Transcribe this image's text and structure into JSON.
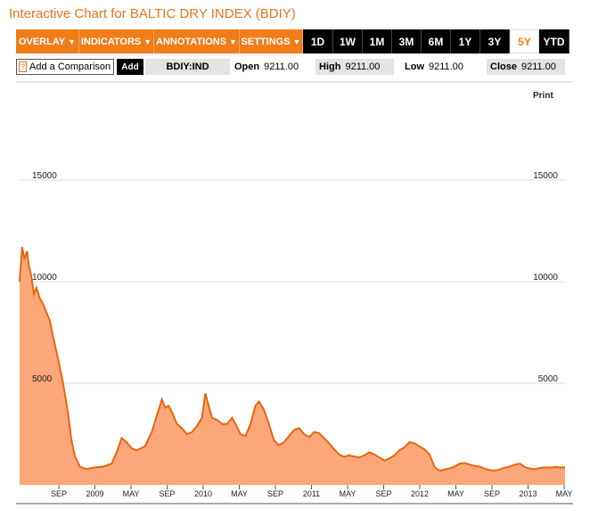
{
  "page_title": "Interactive Chart for BALTIC DRY INDEX (BDIY)",
  "toolbar": {
    "menus": [
      "OVERLAY",
      "INDICATORS",
      "ANNOTATIONS",
      "SETTINGS"
    ],
    "ranges": [
      "1D",
      "1W",
      "1M",
      "3M",
      "6M",
      "1Y",
      "3Y",
      "5Y",
      "YTD"
    ],
    "active_range": "5Y"
  },
  "comparison": {
    "help_icon_label": "?",
    "label": "Add a Comparison",
    "add_button": "Add"
  },
  "ticker": "BDIY:IND",
  "quote": {
    "open_label": "Open",
    "open_value": "9211.00",
    "high_label": "High",
    "high_value": "9211.00",
    "low_label": "Low",
    "low_value": "9211.00",
    "close_label": "Close",
    "close_value": "9211.00"
  },
  "print_label": "Print",
  "colors": {
    "accent": "#f07d19",
    "area_fill": "#fba77a",
    "line": "#e8650f"
  },
  "chart_data": {
    "type": "area",
    "title": "",
    "ylim": [
      0,
      16000
    ],
    "y_ticks": [
      "5000",
      "10000",
      "15000"
    ],
    "x_ticks": [
      "SEP",
      "2009",
      "MAY",
      "SEP",
      "2010",
      "MAY",
      "SEP",
      "2011",
      "MAY",
      "SEP",
      "2012",
      "MAY",
      "SEP",
      "2013",
      "MAY"
    ],
    "series": [
      {
        "name": "BDIY",
        "points": [
          [
            0,
            10000
          ],
          [
            0.15,
            11700
          ],
          [
            0.3,
            11100
          ],
          [
            0.45,
            11500
          ],
          [
            0.55,
            10800
          ],
          [
            0.7,
            10300
          ],
          [
            0.85,
            9400
          ],
          [
            1,
            9700
          ],
          [
            1.2,
            9200
          ],
          [
            1.4,
            8900
          ],
          [
            1.6,
            8500
          ],
          [
            1.8,
            8100
          ],
          [
            2.0,
            7300
          ],
          [
            2.3,
            6200
          ],
          [
            2.6,
            5000
          ],
          [
            2.9,
            3500
          ],
          [
            3.1,
            2200
          ],
          [
            3.3,
            1400
          ],
          [
            3.6,
            900
          ],
          [
            4,
            780
          ],
          [
            4.5,
            860
          ],
          [
            5,
            900
          ],
          [
            5.5,
            1050
          ],
          [
            5.8,
            1600
          ],
          [
            6.1,
            2300
          ],
          [
            6.4,
            2100
          ],
          [
            6.7,
            1800
          ],
          [
            7,
            1700
          ],
          [
            7.5,
            1900
          ],
          [
            7.9,
            2600
          ],
          [
            8.2,
            3400
          ],
          [
            8.5,
            4200
          ],
          [
            8.7,
            3800
          ],
          [
            8.9,
            3900
          ],
          [
            9.1,
            3600
          ],
          [
            9.4,
            3000
          ],
          [
            9.7,
            2800
          ],
          [
            10,
            2500
          ],
          [
            10.3,
            2600
          ],
          [
            10.6,
            2900
          ],
          [
            10.9,
            3300
          ],
          [
            11.1,
            4500
          ],
          [
            11.3,
            3900
          ],
          [
            11.5,
            3300
          ],
          [
            11.8,
            3200
          ],
          [
            12.1,
            3000
          ],
          [
            12.4,
            3000
          ],
          [
            12.7,
            3300
          ],
          [
            12.9,
            3000
          ],
          [
            13.2,
            2500
          ],
          [
            13.5,
            2400
          ],
          [
            13.8,
            3000
          ],
          [
            14.1,
            3900
          ],
          [
            14.3,
            4100
          ],
          [
            14.6,
            3700
          ],
          [
            14.9,
            3000
          ],
          [
            15.2,
            2200
          ],
          [
            15.5,
            1950
          ],
          [
            15.8,
            2100
          ],
          [
            16.1,
            2400
          ],
          [
            16.4,
            2700
          ],
          [
            16.7,
            2800
          ],
          [
            17,
            2500
          ],
          [
            17.3,
            2350
          ],
          [
            17.6,
            2600
          ],
          [
            17.9,
            2550
          ],
          [
            18.2,
            2300
          ],
          [
            18.5,
            2050
          ],
          [
            18.8,
            1750
          ],
          [
            19.1,
            1500
          ],
          [
            19.4,
            1380
          ],
          [
            19.7,
            1450
          ],
          [
            20.0,
            1400
          ],
          [
            20.3,
            1350
          ],
          [
            20.6,
            1450
          ],
          [
            20.9,
            1600
          ],
          [
            21.2,
            1500
          ],
          [
            21.5,
            1350
          ],
          [
            21.8,
            1200
          ],
          [
            22.1,
            1300
          ],
          [
            22.4,
            1450
          ],
          [
            22.7,
            1700
          ],
          [
            23,
            1850
          ],
          [
            23.3,
            2100
          ],
          [
            23.6,
            2050
          ],
          [
            23.9,
            1900
          ],
          [
            24.2,
            1750
          ],
          [
            24.5,
            1500
          ],
          [
            24.8,
            880
          ],
          [
            25.1,
            700
          ],
          [
            25.4,
            750
          ],
          [
            25.7,
            820
          ],
          [
            26,
            900
          ],
          [
            26.3,
            1050
          ],
          [
            26.6,
            1080
          ],
          [
            26.9,
            1000
          ],
          [
            27.2,
            930
          ],
          [
            27.5,
            900
          ],
          [
            27.8,
            800
          ],
          [
            28.1,
            730
          ],
          [
            28.4,
            700
          ],
          [
            28.7,
            760
          ],
          [
            29,
            850
          ],
          [
            29.3,
            900
          ],
          [
            29.6,
            1000
          ],
          [
            29.9,
            1050
          ],
          [
            30.2,
            880
          ],
          [
            30.5,
            800
          ],
          [
            30.8,
            780
          ],
          [
            31.1,
            830
          ],
          [
            31.4,
            870
          ],
          [
            31.7,
            850
          ],
          [
            32,
            880
          ],
          [
            32.3,
            860
          ],
          [
            32.6,
            860
          ]
        ]
      }
    ]
  }
}
